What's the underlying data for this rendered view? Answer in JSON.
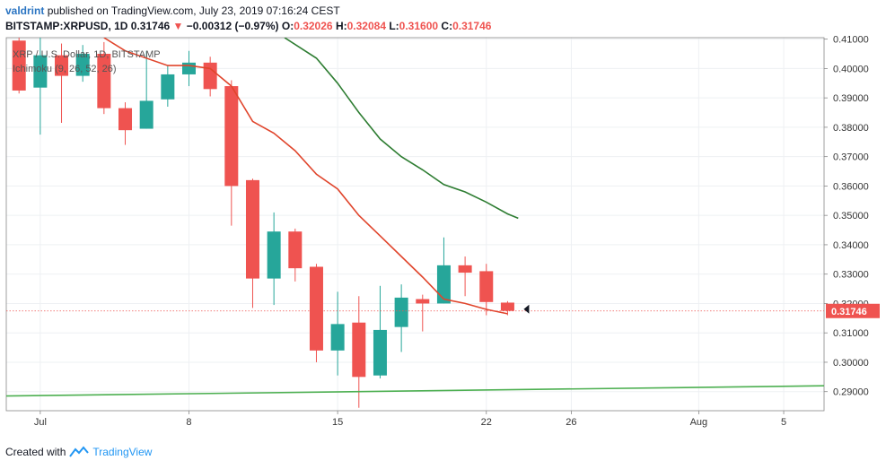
{
  "header": {
    "author": "valdrint",
    "published_text": "published on TradingView.com, July 23, 2019 07:16:24 CEST",
    "symbol": "BITSTAMP:XRPUSD, 1D",
    "last": "0.31746",
    "change_arrow": "▼",
    "change": "−0.00312 (−0.97%)",
    "o_label": "O:",
    "o_value": "0.32026",
    "h_label": "H:",
    "h_value": "0.32084",
    "l_label": "L:",
    "l_value": "0.31600",
    "c_label": "C:",
    "c_value": "0.31746"
  },
  "footer": {
    "created_with": "Created with",
    "brand": "TradingView"
  },
  "chart_data": {
    "type": "candlestick",
    "legend": [
      "XRP / U.S. Dollar, 1D, BITSTAMP",
      "Ichimoku (9, 26, 52, 26)"
    ],
    "ylim": [
      0.2835,
      0.4105
    ],
    "y_ticks": [
      "0.41000",
      "0.40000",
      "0.39000",
      "0.38000",
      "0.37000",
      "0.36000",
      "0.35000",
      "0.34000",
      "0.33000",
      "0.32000",
      "0.31000",
      "0.30000",
      "0.29000"
    ],
    "x_ticks": [
      {
        "label": "Jul",
        "day": 1
      },
      {
        "label": "8",
        "day": 8
      },
      {
        "label": "15",
        "day": 15
      },
      {
        "label": "22",
        "day": 22
      },
      {
        "label": "26",
        "day": 26
      },
      {
        "label": "Aug",
        "day": 32
      },
      {
        "label": "5",
        "day": 36
      }
    ],
    "x_range_days": [
      -0.6,
      37.9
    ],
    "last_price": 0.31746,
    "last_price_label": "0.31746",
    "candles": [
      {
        "day": 0,
        "o": 0.4095,
        "h": 0.4135,
        "l": 0.3915,
        "c": 0.3925
      },
      {
        "day": 1,
        "o": 0.3935,
        "h": 0.412,
        "l": 0.3775,
        "c": 0.4045
      },
      {
        "day": 2,
        "o": 0.4045,
        "h": 0.4085,
        "l": 0.3815,
        "c": 0.3975
      },
      {
        "day": 3,
        "o": 0.3975,
        "h": 0.408,
        "l": 0.3955,
        "c": 0.405
      },
      {
        "day": 4,
        "o": 0.405,
        "h": 0.409,
        "l": 0.3845,
        "c": 0.3865
      },
      {
        "day": 5,
        "o": 0.3865,
        "h": 0.3885,
        "l": 0.374,
        "c": 0.379
      },
      {
        "day": 6,
        "o": 0.3795,
        "h": 0.406,
        "l": 0.3795,
        "c": 0.389
      },
      {
        "day": 7,
        "o": 0.3895,
        "h": 0.401,
        "l": 0.387,
        "c": 0.398
      },
      {
        "day": 8,
        "o": 0.398,
        "h": 0.406,
        "l": 0.394,
        "c": 0.402
      },
      {
        "day": 9,
        "o": 0.402,
        "h": 0.404,
        "l": 0.3905,
        "c": 0.393
      },
      {
        "day": 10,
        "o": 0.394,
        "h": 0.396,
        "l": 0.3465,
        "c": 0.36
      },
      {
        "day": 11,
        "o": 0.362,
        "h": 0.3625,
        "l": 0.3185,
        "c": 0.3285
      },
      {
        "day": 12,
        "o": 0.3285,
        "h": 0.351,
        "l": 0.3195,
        "c": 0.3445
      },
      {
        "day": 13,
        "o": 0.3445,
        "h": 0.3455,
        "l": 0.3275,
        "c": 0.332
      },
      {
        "day": 14,
        "o": 0.3325,
        "h": 0.3335,
        "l": 0.3,
        "c": 0.304
      },
      {
        "day": 15,
        "o": 0.304,
        "h": 0.324,
        "l": 0.2955,
        "c": 0.313
      },
      {
        "day": 16,
        "o": 0.3135,
        "h": 0.3225,
        "l": 0.2845,
        "c": 0.295
      },
      {
        "day": 17,
        "o": 0.2955,
        "h": 0.326,
        "l": 0.2945,
        "c": 0.311
      },
      {
        "day": 18,
        "o": 0.312,
        "h": 0.3265,
        "l": 0.3035,
        "c": 0.322
      },
      {
        "day": 19,
        "o": 0.3215,
        "h": 0.323,
        "l": 0.3105,
        "c": 0.32
      },
      {
        "day": 20,
        "o": 0.32,
        "h": 0.3425,
        "l": 0.32,
        "c": 0.333
      },
      {
        "day": 21,
        "o": 0.333,
        "h": 0.336,
        "l": 0.3225,
        "c": 0.3305
      },
      {
        "day": 22,
        "o": 0.331,
        "h": 0.3335,
        "l": 0.316,
        "c": 0.3205
      },
      {
        "day": 23,
        "o": 0.3203,
        "h": 0.3208,
        "l": 0.316,
        "c": 0.3175
      }
    ],
    "series": [
      {
        "role": "conversion_line",
        "color": "#e0452c",
        "points": [
          [
            4,
            0.4105
          ],
          [
            5,
            0.406
          ],
          [
            7,
            0.401
          ],
          [
            8,
            0.401
          ],
          [
            9,
            0.4
          ],
          [
            10,
            0.394
          ],
          [
            11,
            0.382
          ],
          [
            12,
            0.378
          ],
          [
            13,
            0.372
          ],
          [
            14,
            0.364
          ],
          [
            15,
            0.359
          ],
          [
            16,
            0.35
          ],
          [
            17,
            0.343
          ],
          [
            18,
            0.336
          ],
          [
            19,
            0.329
          ],
          [
            20,
            0.3215
          ],
          [
            21,
            0.32
          ],
          [
            22,
            0.318
          ],
          [
            23,
            0.3165
          ]
        ]
      },
      {
        "role": "base_line",
        "color": "#2e7d32",
        "points": [
          [
            12.5,
            0.4105
          ],
          [
            14,
            0.4035
          ],
          [
            15,
            0.395
          ],
          [
            16,
            0.385
          ],
          [
            17,
            0.376
          ],
          [
            18,
            0.37
          ],
          [
            19,
            0.3655
          ],
          [
            20,
            0.3605
          ],
          [
            21,
            0.358
          ],
          [
            22,
            0.3545
          ],
          [
            23,
            0.3505
          ],
          [
            23.5,
            0.349
          ]
        ]
      },
      {
        "role": "trend_line",
        "color": "#4caf50",
        "points": [
          [
            -0.6,
            0.2885
          ],
          [
            37.9,
            0.292
          ]
        ]
      }
    ],
    "colors": {
      "up": "#26a69a",
      "down": "#ef5350",
      "grid": "#eef0f3",
      "axis_text": "#333333"
    }
  }
}
